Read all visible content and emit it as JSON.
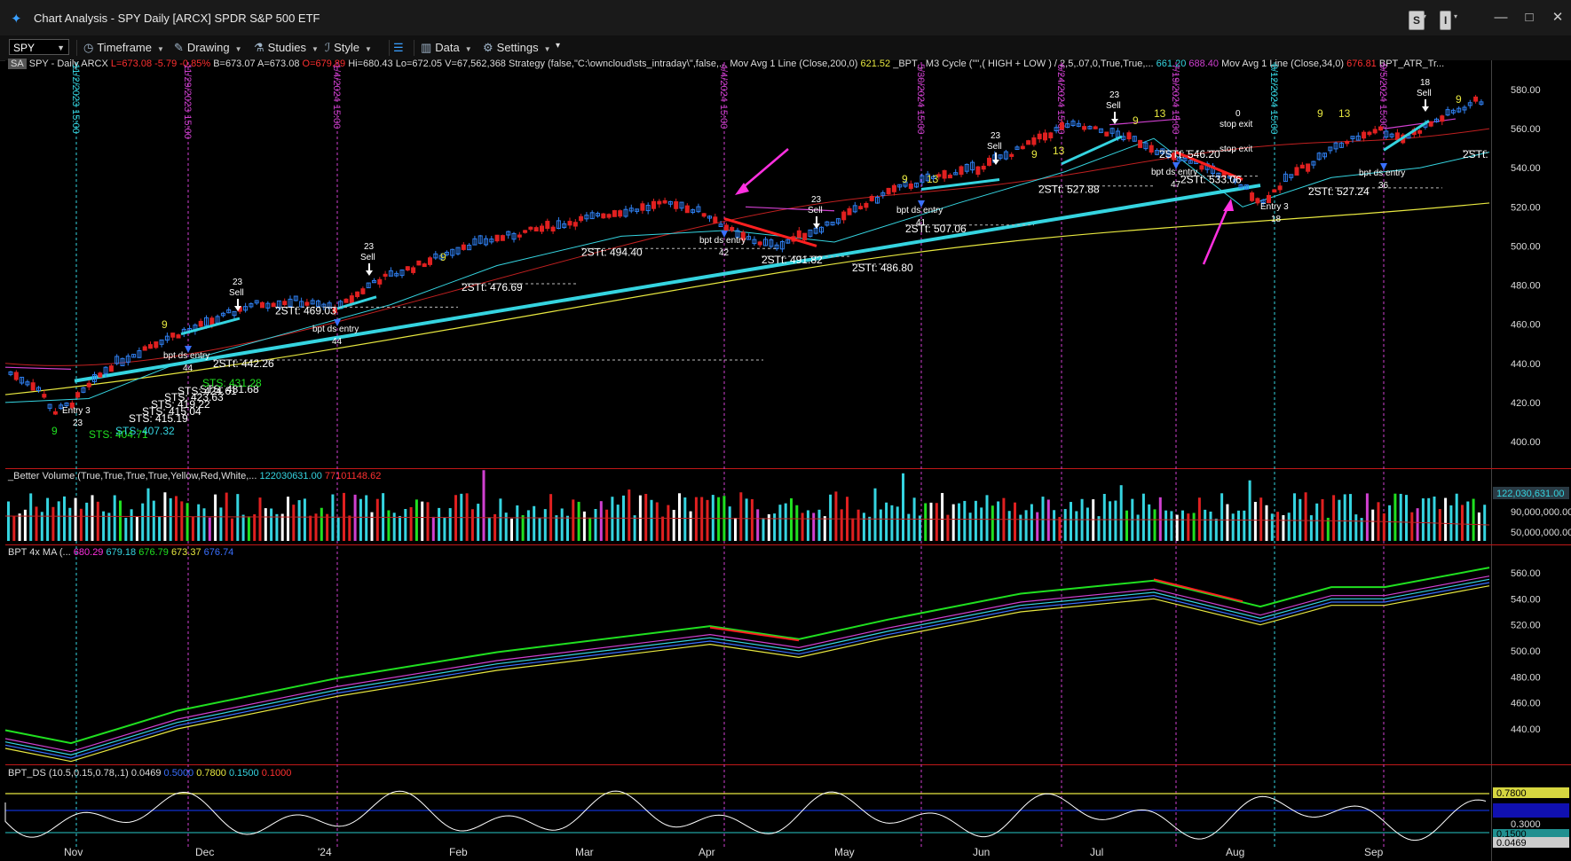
{
  "window": {
    "title": "Chart Analysis - SPY Daily [ARCX] SPDR S&P 500 ETF",
    "s_label": "S",
    "i_label": "I",
    "minimize": "—",
    "maximize": "□",
    "close": "✕"
  },
  "toolbar": {
    "symbol": "SPY",
    "items": [
      "Timeframe",
      "Drawing",
      "Studies",
      "Style",
      "Data",
      "Settings"
    ]
  },
  "price_header": {
    "badge": "SA",
    "symbol_label": "SPY - Daily  ARCX",
    "last": "L=673.08",
    "change": "-5.79",
    "change_pct": "-0.85%",
    "bid": "B=673.07",
    "ask": "A=673.08",
    "open": "O=679.89",
    "high": "Hi=680.43",
    "low": "Lo=672.05",
    "volume": "V=67,562,368",
    "strategy": "Strategy (false,\"C:\\owncloud\\sts_intraday\\\",false,...",
    "ma200": "Mov Avg 1 Line (Close,200,0)",
    "ma200_val": "621.52",
    "m3": "_BPT_ M3 Cycle (\"\",( HIGH  +  LOW ) / 2,5,.07,0,True,True,...",
    "m3_val1": "661.20",
    "m3_val2": "688.40",
    "ma34": "Mov Avg 1 Line (Close,34,0)",
    "ma34_val": "676.81",
    "atr": "BPT_ATR_Tr..."
  },
  "volume_header": {
    "label": "_Better Volume (True,True,True,True,Yellow,Red,White,...",
    "val1": "122030631.00",
    "val2": "77101148.62"
  },
  "ma_header": {
    "label": "BPT 4x MA (...",
    "v1": "680.29",
    "v2": "679.18",
    "v3": "676.79",
    "v4": "673.37",
    "v5": "676.74"
  },
  "ds_header": {
    "label": "BPT_DS (10.5,0.15,0.78,.1)",
    "v1": "0.0469",
    "v2": "0.5000",
    "v3": "0.7800",
    "v4": "0.1500",
    "v5": "0.1000"
  },
  "price_axis": [
    "580.00",
    "560.00",
    "540.00",
    "520.00",
    "500.00",
    "480.00",
    "460.00",
    "440.00",
    "420.00",
    "400.00"
  ],
  "volume_axis": {
    "current": "122,030,631.00",
    "ticks": [
      "90,000,000.00",
      "50,000,000.00"
    ]
  },
  "ma_axis": [
    "560.00",
    "540.00",
    "520.00",
    "500.00",
    "480.00",
    "460.00",
    "440.00"
  ],
  "ds_axis": {
    "upper": "0.7800",
    "mid": "0.3000",
    "low": "0.1500",
    "current": "0.0469"
  },
  "time_axis": [
    "Nov",
    "Dec",
    "'24",
    "Feb",
    "Mar",
    "Apr",
    "May",
    "Jun",
    "Jul",
    "Aug",
    "Sep"
  ],
  "vertical_date_labels": [
    {
      "text": "11/2/2023 15:00",
      "color": "#35d4e0"
    },
    {
      "text": "11/29/2023 15:00",
      "color": "#d040d0"
    },
    {
      "text": "1/4/2024 15:00",
      "color": "#d040d0"
    },
    {
      "text": "4/4/2024 15:00",
      "color": "#d040d0"
    },
    {
      "text": "5/30/2024 15:00",
      "color": "#d040d0"
    },
    {
      "text": "6/24/2024 15:00",
      "color": "#d040d0"
    },
    {
      "text": "7/19/2024 15:00",
      "color": "#d040d0"
    },
    {
      "text": "8/12/2024 15:00",
      "color": "#35d4e0"
    },
    {
      "text": "9/5/2024 15:00",
      "color": "#d040d0"
    }
  ],
  "annotations": {
    "stt_labels": [
      "2STt: 442.26",
      "2STt: 469.03",
      "2STt: 476.69",
      "2STt: 494.40",
      "2STt: 491.82",
      "2STt: 486.80",
      "2STt: 507.06",
      "2STt: 527.88",
      "2STt: 546.20",
      "2STt: 533.06",
      "2STt: 527.24",
      "2STt:"
    ],
    "sts_labels": [
      "STS: 404.71",
      "STS: 407.32",
      "STS: 415.19",
      "STS: 415.04",
      "STS: 419.22",
      "STS: 423.63",
      "STS: 424.61",
      "STS: 431.68",
      "STS: 431.28"
    ],
    "sell_labels": [
      "Sell",
      "Sell",
      "Sell",
      "Sell",
      "Sell",
      "Sell"
    ],
    "sell_counts": [
      "23",
      "23",
      "23",
      "23",
      "23",
      "18"
    ],
    "entry_labels": [
      "bpt ds entry",
      "bpt ds entry",
      "bpt ds entry",
      "bpt ds entry",
      "bpt ds entry",
      "bpt ds entry"
    ],
    "entry_counts": [
      "44",
      "44",
      "42",
      "41",
      "47",
      "36"
    ],
    "entry3": [
      "Entry 3",
      "Entry 3"
    ],
    "entry3_counts": [
      "23",
      "18"
    ],
    "stop_exit": [
      "stop exit",
      "stop exit"
    ],
    "stop_count": "0",
    "nines": [
      "9",
      "9",
      "9",
      "9",
      "9",
      "9",
      "9",
      "9"
    ],
    "thirteens": [
      "13",
      "13",
      "13",
      "13"
    ]
  },
  "colors": {
    "up_candle": "#2f7ff0",
    "down_candle": "#e02020",
    "cyan": "#35d4e0",
    "magenta": "#d040d0",
    "yellow": "#e8e840",
    "green": "#20e020",
    "pink_arrow": "#ff30e0"
  }
}
